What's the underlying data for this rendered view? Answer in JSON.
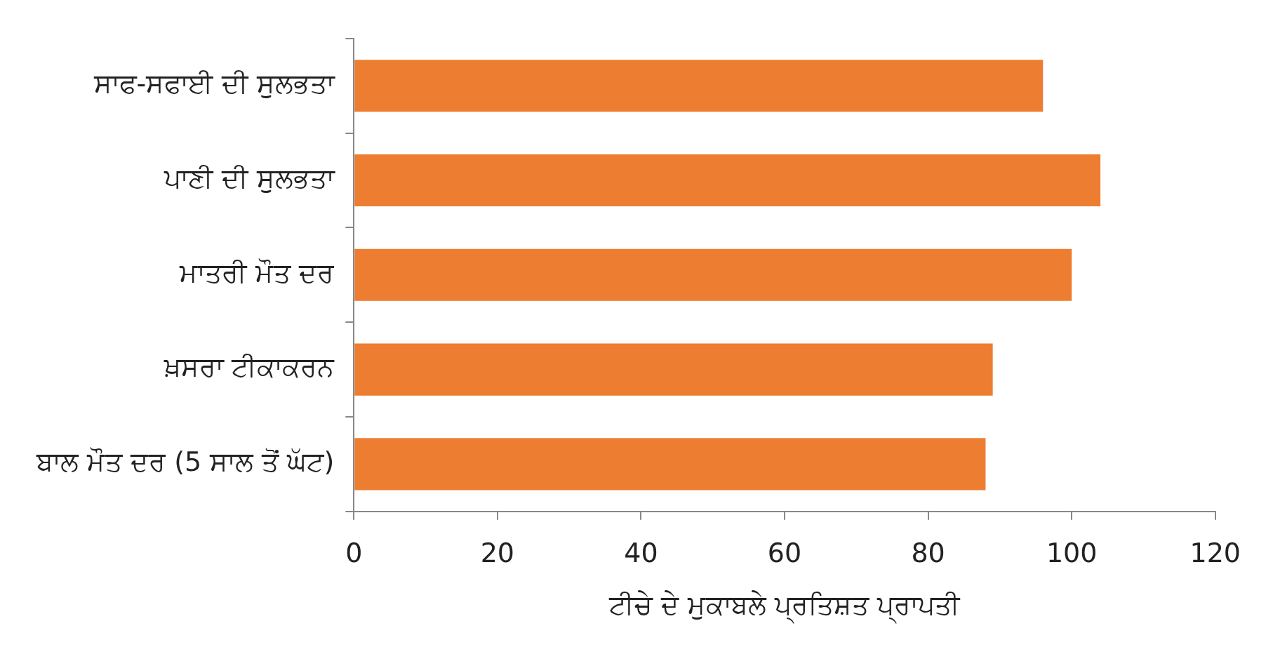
{
  "chart_data": {
    "type": "bar",
    "orientation": "horizontal",
    "categories": [
      "ਸਾਫ-ਸਫਾਈ ਦੀ ਸੁਲਭਤਾ",
      "ਪਾਣੀ ਦੀ ਸੁਲਭਤਾ",
      "ਮਾਤਰੀ ਮੌਤ ਦਰ",
      "ਖ਼ਸਰਾ ਟੀਕਾਕਰਨ",
      "ਬਾਲ ਮੌਤ ਦਰ (5 ਸਾਲ ਤੋਂ ਘੱਟ)"
    ],
    "values": [
      96,
      104,
      100,
      89,
      88
    ],
    "color": "#ed7d31",
    "xlabel": "ਟੀਚੇ ਦੇ ਮੁਕਾਬਲੇ ਪ੍ਰਤਿਸ਼ਤ ਪ੍ਰਾਪਤੀ",
    "xlim": [
      0,
      120
    ],
    "xticks": [
      0,
      20,
      40,
      60,
      80,
      100,
      120
    ],
    "grid": false,
    "legend": false
  }
}
